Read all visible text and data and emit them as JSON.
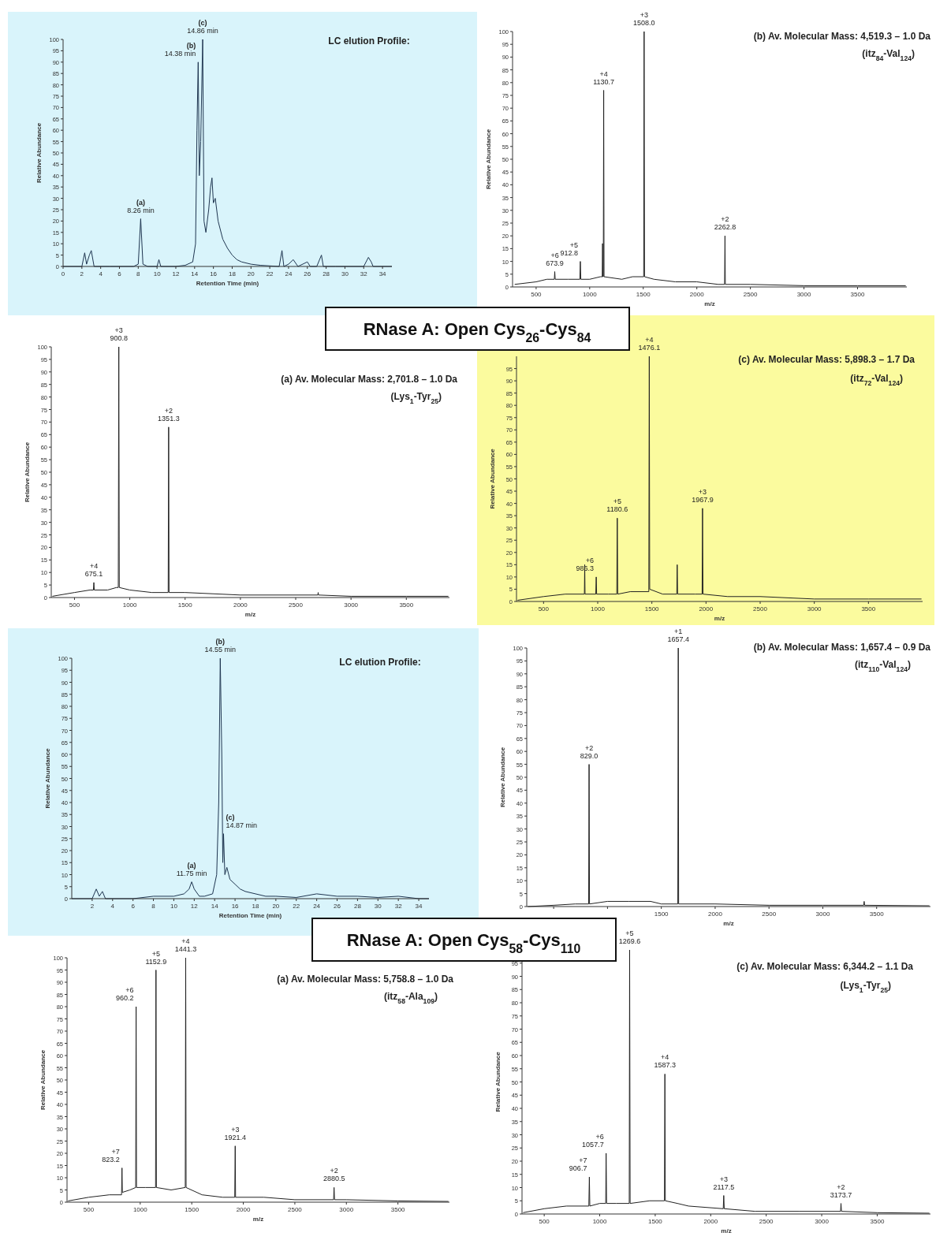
{
  "chart_data": [
    {
      "type": "line",
      "title": "LC elution Profile:",
      "subtitle": "RNase A: Open Cys$_{26}$-Cys$_{84}$",
      "xlabel": "Retention Time (min)",
      "ylabel": "Relative Abundance",
      "xlim": [
        0,
        35
      ],
      "xticks": [
        0,
        2,
        4,
        6,
        8,
        10,
        12,
        14,
        16,
        18,
        20,
        22,
        24,
        26,
        28,
        30,
        32,
        34
      ],
      "ylim": [
        0,
        100
      ],
      "yticks": [
        0,
        5,
        10,
        15,
        20,
        25,
        30,
        35,
        40,
        45,
        50,
        55,
        60,
        65,
        70,
        75,
        80,
        85,
        90,
        95,
        100
      ],
      "x": [
        0,
        2,
        2.3,
        2.5,
        2.8,
        3.0,
        3.3,
        5,
        7.5,
        8.0,
        8.26,
        8.5,
        9,
        10,
        10.2,
        10.4,
        12,
        13,
        13.8,
        14.1,
        14.25,
        14.38,
        14.5,
        14.65,
        14.86,
        15.0,
        15.2,
        15.5,
        15.7,
        15.85,
        16.0,
        16.2,
        16.5,
        17,
        17.5,
        18,
        18.5,
        19,
        20,
        21,
        23,
        23.3,
        23.5,
        24,
        24.5,
        25,
        26,
        26.3,
        27,
        27.5,
        27.7,
        29,
        32,
        32.5,
        32.8,
        33,
        35
      ],
      "series": [
        {
          "color": "#1f3550",
          "values": [
            0,
            0,
            6,
            1,
            5,
            7,
            0,
            0,
            0,
            1,
            21,
            1,
            0,
            0,
            3,
            0,
            0,
            0.5,
            2,
            10,
            60,
            90,
            40,
            55,
            100,
            20,
            15,
            25,
            35,
            39,
            28,
            30,
            20,
            12,
            8,
            5,
            3,
            2,
            1,
            0.5,
            0,
            7,
            0,
            1,
            3,
            0,
            2,
            0,
            0,
            5,
            0,
            0,
            0,
            4,
            2,
            0,
            0
          ]
        }
      ],
      "annotations": [
        {
          "text": "(c)\n14.86 min",
          "x": 14.86,
          "y": 100
        },
        {
          "text": "(b)\n14.38 min",
          "x": 14.38,
          "y": 90
        },
        {
          "text": "(a)\n8.26 min",
          "x": 8.26,
          "y": 21
        }
      ]
    },
    {
      "type": "line",
      "title": "(b) Av. Molecular Mass: 4,519.3 – 1.0 Da",
      "subtitle": "(itz$_{84}$-Val$_{124}$)",
      "xlabel": "m/z",
      "ylabel": "Relative Abundance",
      "xlim": [
        280,
        3960
      ],
      "xticks": [
        500,
        1000,
        1500,
        2000,
        2500,
        3000,
        3500
      ],
      "ylim": [
        0,
        100
      ],
      "yticks": [
        0,
        5,
        10,
        15,
        20,
        25,
        30,
        35,
        40,
        45,
        50,
        55,
        60,
        65,
        70,
        75,
        80,
        85,
        90,
        95,
        100
      ],
      "x": [
        300,
        500,
        600,
        670,
        673.9,
        678,
        800,
        908,
        912.8,
        917,
        1000,
        1100,
        1117,
        1120,
        1123,
        1127,
        1130.7,
        1134,
        1300,
        1400,
        1504,
        1508,
        1512,
        1600,
        1800,
        2000,
        2200,
        2259,
        2262.8,
        2266,
        2500,
        3000,
        3500,
        3950
      ],
      "series": [
        {
          "color": "#222222",
          "values": [
            1,
            2,
            3,
            3,
            6,
            3,
            3,
            3,
            10,
            3,
            3,
            4,
            4,
            17,
            4,
            4,
            77,
            4,
            3,
            4,
            4,
            100,
            4,
            3,
            2,
            2,
            1,
            1,
            20,
            1,
            1,
            0.5,
            0.5,
            0.5
          ]
        }
      ],
      "annotations": [
        {
          "text": "+3\n1508.0",
          "x": 1508,
          "y": 100
        },
        {
          "text": "+4\n1130.7",
          "x": 1130.7,
          "y": 77
        },
        {
          "text": "+2\n2262.8",
          "x": 2262.8,
          "y": 20
        },
        {
          "text": "+5\n912.8",
          "x": 912.8,
          "y": 10
        },
        {
          "text": "+6\n673.9",
          "x": 673.9,
          "y": 6
        }
      ]
    },
    {
      "type": "line",
      "title": "(a) Av. Molecular Mass: 2,701.8 – 1.0 Da",
      "subtitle": "(Lys$_{1}$-Tyr$_{25}$)",
      "xlabel": "m/z",
      "ylabel": "Relative Abundance",
      "xlim": [
        290,
        3890
      ],
      "xticks": [
        500,
        1000,
        1500,
        2000,
        2500,
        3000,
        3500
      ],
      "ylim": [
        0,
        100
      ],
      "yticks": [
        0,
        5,
        10,
        15,
        20,
        25,
        30,
        35,
        40,
        45,
        50,
        55,
        60,
        65,
        70,
        75,
        80,
        85,
        90,
        95,
        100
      ],
      "x": [
        300,
        500,
        640,
        671,
        675.1,
        679,
        800,
        880,
        896,
        900.8,
        905,
        1000,
        1200,
        1347,
        1351.3,
        1355,
        1500,
        2000,
        2700,
        2703,
        2706,
        3000,
        3500,
        3880
      ],
      "series": [
        {
          "color": "#222222",
          "values": [
            0.5,
            2,
            3,
            3,
            6,
            3,
            3,
            4,
            4,
            100,
            4,
            3,
            2,
            2,
            68,
            2,
            2,
            1,
            1,
            2,
            1,
            0.5,
            0.5,
            0.5
          ]
        }
      ],
      "annotations": [
        {
          "text": "+3\n900.8",
          "x": 900.8,
          "y": 100
        },
        {
          "text": "+2\n1351.3",
          "x": 1351.3,
          "y": 68
        },
        {
          "text": "+4\n675.1",
          "x": 675.1,
          "y": 6
        }
      ]
    },
    {
      "type": "line",
      "title": "(c) Av. Molecular Mass: 5,898.3 – 1.7 Da",
      "subtitle": "(itz$_{72}$-Val$_{124}$)",
      "xlabel": "m/z",
      "ylabel": "Relative Abundance",
      "xlim": [
        250,
        4000
      ],
      "xticks": [
        500,
        1000,
        1500,
        2000,
        2500,
        3000,
        3500
      ],
      "ylim": [
        0,
        100
      ],
      "yticks": [
        0,
        5,
        10,
        15,
        20,
        25,
        30,
        35,
        40,
        45,
        50,
        55,
        60,
        65,
        70,
        75,
        80,
        85,
        90,
        95
      ],
      "x": [
        260,
        500,
        700,
        877,
        880,
        883,
        982,
        986.3,
        990,
        1100,
        1176,
        1180.6,
        1185,
        1300,
        1472,
        1476.1,
        1480,
        1600,
        1730,
        1734,
        1738,
        1900,
        1964,
        1967.9,
        1972,
        2200,
        2500,
        3000,
        3500,
        3990
      ],
      "series": [
        {
          "color": "#222222",
          "values": [
            0.5,
            2,
            3,
            3,
            15,
            3,
            3,
            10,
            3,
            3,
            3,
            34,
            3,
            4,
            4,
            100,
            5,
            3,
            3,
            15,
            3,
            3,
            3,
            38,
            3,
            2,
            2,
            1,
            1,
            1
          ]
        }
      ],
      "annotations": [
        {
          "text": "+4\n1476.1",
          "x": 1476.1,
          "y": 100
        },
        {
          "text": "+3\n1967.9",
          "x": 1967.9,
          "y": 38
        },
        {
          "text": "+5\n1180.6",
          "x": 1180.6,
          "y": 34
        },
        {
          "text": "+6\n986.3",
          "x": 986.3,
          "y": 10
        }
      ]
    },
    {
      "type": "line",
      "title": "LC elution Profile:",
      "subtitle": "RNase A: Open Cys$_{58}$-Cys$_{110}$",
      "xlabel": "Retention Time (min)",
      "ylabel": "Relative Abundance",
      "xlim": [
        0,
        35
      ],
      "xticks": [
        2,
        4,
        6,
        8,
        10,
        12,
        14,
        16,
        18,
        20,
        22,
        24,
        26,
        28,
        30,
        32,
        34
      ],
      "ylim": [
        0,
        100
      ],
      "yticks": [
        0,
        5,
        10,
        15,
        20,
        25,
        30,
        35,
        40,
        45,
        50,
        55,
        60,
        65,
        70,
        75,
        80,
        85,
        90,
        95,
        100
      ],
      "x": [
        0,
        2,
        2.4,
        2.7,
        3.0,
        3.3,
        4,
        6,
        8,
        10,
        11,
        11.5,
        11.75,
        12.0,
        12.5,
        13,
        13.8,
        14.2,
        14.4,
        14.55,
        14.7,
        14.8,
        14.87,
        15.0,
        15.2,
        15.5,
        16,
        16.5,
        17,
        18,
        19,
        20,
        22,
        24,
        26,
        28,
        30,
        32,
        34,
        35
      ],
      "series": [
        {
          "color": "#1f3550",
          "values": [
            0,
            0,
            4,
            1,
            3,
            0,
            0,
            0,
            1,
            1,
            2,
            4,
            7,
            4,
            1,
            1,
            2,
            10,
            40,
            100,
            60,
            15,
            27,
            10,
            13,
            8,
            6,
            4,
            3,
            2,
            1,
            1,
            0.5,
            2,
            1,
            1,
            0.5,
            1,
            0,
            0
          ]
        }
      ],
      "annotations": [
        {
          "text": "(b)\n14.55 min",
          "x": 14.55,
          "y": 100
        },
        {
          "text": "(c)\n14.87 min",
          "x": 14.87,
          "y": 27
        },
        {
          "text": "(a)\n11.75 min",
          "x": 11.75,
          "y": 7
        }
      ]
    },
    {
      "type": "line",
      "title": "(b) Av. Molecular Mass: 1,657.4 – 0.9 Da",
      "subtitle": "(itz$_{110}$-Val$_{124}$)",
      "xlabel": "m/z",
      "ylabel": "Relative Abundance",
      "xlim": [
        250,
        4000
      ],
      "xticks": [
        {
          "value": 500,
          "label": null
        },
        {
          "value": 1000,
          "label": null
        },
        1500,
        2000,
        2500,
        3000,
        3500
      ],
      "ylim": [
        0,
        100
      ],
      "yticks": [
        0,
        5,
        10,
        15,
        20,
        25,
        30,
        35,
        40,
        45,
        50,
        55,
        60,
        65,
        70,
        75,
        80,
        85,
        90,
        95,
        100
      ],
      "x": [
        260,
        500,
        700,
        825,
        829.0,
        833,
        1000,
        1200,
        1400,
        1500,
        1653,
        1657.4,
        1661,
        2000,
        2500,
        3000,
        3380,
        3384,
        3388,
        3990
      ],
      "series": [
        {
          "color": "#222222",
          "values": [
            0,
            0.5,
            1,
            1,
            55,
            1,
            2,
            2,
            2,
            1,
            1,
            100,
            1,
            1,
            0.5,
            0.5,
            0.5,
            2,
            0.5,
            0.3
          ]
        }
      ],
      "annotations": [
        {
          "text": "+1\n1657.4",
          "x": 1657.4,
          "y": 100
        },
        {
          "text": "+2\n829.0",
          "x": 829.0,
          "y": 55
        }
      ]
    },
    {
      "type": "line",
      "title": "(a) Av. Molecular Mass: 5,758.8 – 1.0 Da",
      "subtitle": "(itz$_{58}$-Ala$_{109}$)",
      "xlabel": "m/z",
      "ylabel": "Relative Abundance",
      "xlim": [
        290,
        4000
      ],
      "xticks": [
        500,
        1000,
        1500,
        2000,
        2500,
        3000,
        3500
      ],
      "ylim": [
        0,
        100
      ],
      "yticks": [
        0,
        5,
        10,
        15,
        20,
        25,
        30,
        35,
        40,
        45,
        50,
        55,
        60,
        65,
        70,
        75,
        80,
        85,
        90,
        95,
        100
      ],
      "x": [
        300,
        500,
        700,
        819,
        823.2,
        827,
        900,
        956,
        960.2,
        964,
        1050,
        1149,
        1152.9,
        1157,
        1300,
        1437,
        1441.3,
        1445,
        1600,
        1800,
        1917,
        1921.4,
        1925,
        2200,
        2500,
        2876,
        2880.5,
        2885,
        3000,
        3500,
        3990
      ],
      "series": [
        {
          "color": "#222222",
          "values": [
            0.5,
            2,
            3,
            3,
            14,
            4,
            5,
            6,
            80,
            6,
            6,
            6,
            95,
            6,
            5,
            6,
            100,
            6,
            3,
            2,
            2,
            23,
            2,
            2,
            1,
            1,
            6,
            1,
            1,
            0.5,
            0.3
          ]
        }
      ],
      "annotations": [
        {
          "text": "+4\n1441.3",
          "x": 1441.3,
          "y": 100
        },
        {
          "text": "+5\n1152.9",
          "x": 1152.9,
          "y": 95
        },
        {
          "text": "+6\n960.2",
          "x": 960.2,
          "y": 80
        },
        {
          "text": "+7\n823.2",
          "x": 823.2,
          "y": 14
        },
        {
          "text": "+3\n1921.4",
          "x": 1921.4,
          "y": 23
        },
        {
          "text": "+2\n2880.5",
          "x": 2880.5,
          "y": 6
        }
      ]
    },
    {
      "type": "line",
      "title": "(c) Av. Molecular Mass: 6,344.2 – 1.1 Da",
      "subtitle": "(Lys$_{1}$-Tyr$_{25}$)",
      "xlabel": "m/z",
      "ylabel": "Relative Abundance",
      "xlim": [
        300,
        3980
      ],
      "xticks": [
        500,
        1000,
        1500,
        2000,
        2500,
        3000,
        3500
      ],
      "ylim": [
        0,
        100
      ],
      "yticks": [
        0,
        5,
        10,
        15,
        20,
        25,
        30,
        35,
        40,
        45,
        50,
        55,
        60,
        65,
        70,
        75,
        80,
        85,
        90,
        95
      ],
      "x": [
        310,
        500,
        700,
        902,
        906.7,
        911,
        1000,
        1054,
        1057.7,
        1062,
        1150,
        1266,
        1269.6,
        1274,
        1450,
        1583,
        1587.3,
        1591,
        1700,
        1800,
        2113,
        2117.5,
        2122,
        2400,
        2800,
        3170,
        3173.7,
        3178,
        3500,
        3970
      ],
      "series": [
        {
          "color": "#222222",
          "values": [
            0.5,
            2,
            3,
            3,
            14,
            3,
            4,
            4,
            23,
            4,
            4,
            4,
            100,
            4,
            5,
            5,
            53,
            5,
            4,
            3,
            2,
            7,
            2,
            1,
            1,
            1,
            4,
            1,
            0.5,
            0.3
          ]
        }
      ],
      "annotations": [
        {
          "text": "+5\n1269.6",
          "x": 1269.6,
          "y": 100
        },
        {
          "text": "+4\n1587.3",
          "x": 1587.3,
          "y": 53
        },
        {
          "text": "+6\n1057.7",
          "x": 1057.7,
          "y": 23
        },
        {
          "text": "+7\n906.7",
          "x": 906.7,
          "y": 14
        },
        {
          "text": "+3\n2117.5",
          "x": 2117.5,
          "y": 7
        },
        {
          "text": "+2\n3173.7",
          "x": 3173.7,
          "y": 4
        }
      ]
    }
  ]
}
